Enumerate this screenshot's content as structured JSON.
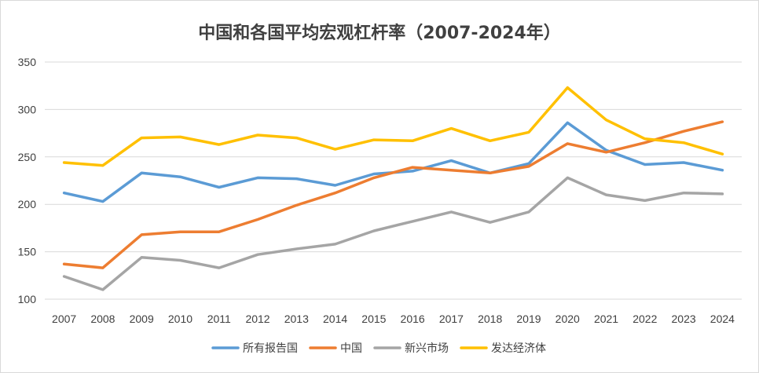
{
  "chart_data": {
    "type": "line",
    "title": "中国和各国平均宏观杠杆率（2007-2024年）",
    "xlabel": "",
    "ylabel": "",
    "ylim": [
      100,
      350
    ],
    "yticks": [
      100,
      150,
      200,
      250,
      300,
      350
    ],
    "grid": true,
    "legend_position": "bottom",
    "categories": [
      "2007",
      "2008",
      "2009",
      "2010",
      "2011",
      "2012",
      "2013",
      "2014",
      "2015",
      "2016",
      "2017",
      "2018",
      "2019",
      "2020",
      "2021",
      "2022",
      "2023",
      "2024"
    ],
    "series": [
      {
        "name": "所有报告国",
        "color": "#5b9bd5",
        "values": [
          212,
          203,
          233,
          229,
          218,
          228,
          227,
          220,
          232,
          235,
          246,
          233,
          243,
          286,
          257,
          242,
          244,
          236
        ]
      },
      {
        "name": "中国",
        "color": "#ed7d31",
        "values": [
          137,
          133,
          168,
          171,
          171,
          184,
          199,
          212,
          228,
          239,
          236,
          233,
          240,
          264,
          255,
          265,
          277,
          287
        ]
      },
      {
        "name": "新兴市场",
        "color": "#a5a5a5",
        "values": [
          124,
          110,
          144,
          141,
          133,
          147,
          153,
          158,
          172,
          182,
          192,
          181,
          192,
          228,
          210,
          204,
          212,
          211
        ]
      },
      {
        "name": "发达经济体",
        "color": "#ffc000",
        "values": [
          244,
          241,
          270,
          271,
          263,
          273,
          270,
          258,
          268,
          267,
          280,
          267,
          276,
          323,
          289,
          269,
          265,
          253
        ]
      }
    ]
  }
}
